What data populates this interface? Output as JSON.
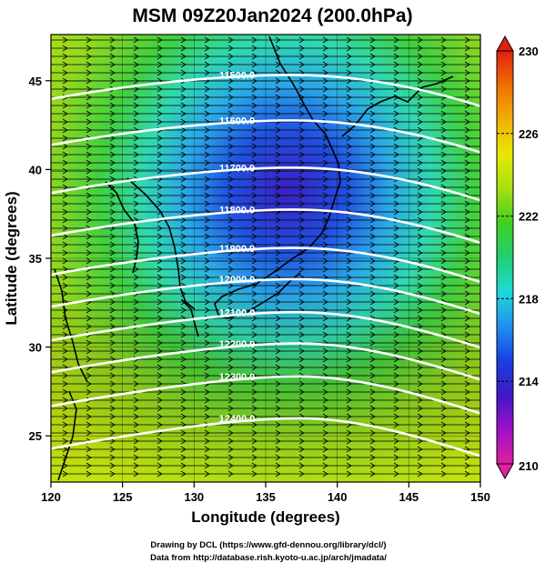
{
  "title": "MSM 09Z20Jan2024 (200.0hPa)",
  "x_axis": {
    "label": "Longitude (degrees)",
    "range": [
      120,
      150
    ],
    "ticks": [
      120,
      125,
      130,
      135,
      140,
      145,
      150
    ]
  },
  "y_axis": {
    "label": "Latitude  (degrees)",
    "range": [
      22.4,
      47.6
    ],
    "ticks": [
      25,
      30,
      35,
      40,
      45
    ]
  },
  "colorbar": {
    "range": [
      210,
      230
    ],
    "ticks": [
      210,
      214,
      218,
      222,
      226,
      230
    ],
    "colors": [
      "#e0209e",
      "#a010c8",
      "#4018c8",
      "#1840e0",
      "#2090f0",
      "#20d8d8",
      "#20d070",
      "#40d020",
      "#a8e010",
      "#e8e800",
      "#f0b000",
      "#f07000",
      "#e02010"
    ]
  },
  "contours": [
    {
      "label": "11500.0",
      "lat": 44.9
    },
    {
      "label": "11600.0",
      "lat": 42.3
    },
    {
      "label": "11700.0",
      "lat": 39.6
    },
    {
      "label": "11800.0",
      "lat": 37.2
    },
    {
      "label": "11900.0",
      "lat": 35.0
    },
    {
      "label": "12000.0",
      "lat": 33.2
    },
    {
      "label": "12100.0",
      "lat": 31.3
    },
    {
      "label": "12200.0",
      "lat": 29.5
    },
    {
      "label": "12300.0",
      "lat": 27.6
    },
    {
      "label": "12400.0",
      "lat": 25.2
    }
  ],
  "footer": {
    "line1": "Drawing by DCL (https://www.gfd-dennou.org/library/dcl/)",
    "line2": "Data from http://database.rish.kyoto-u.ac.jp/arch/jmadata/"
  }
}
